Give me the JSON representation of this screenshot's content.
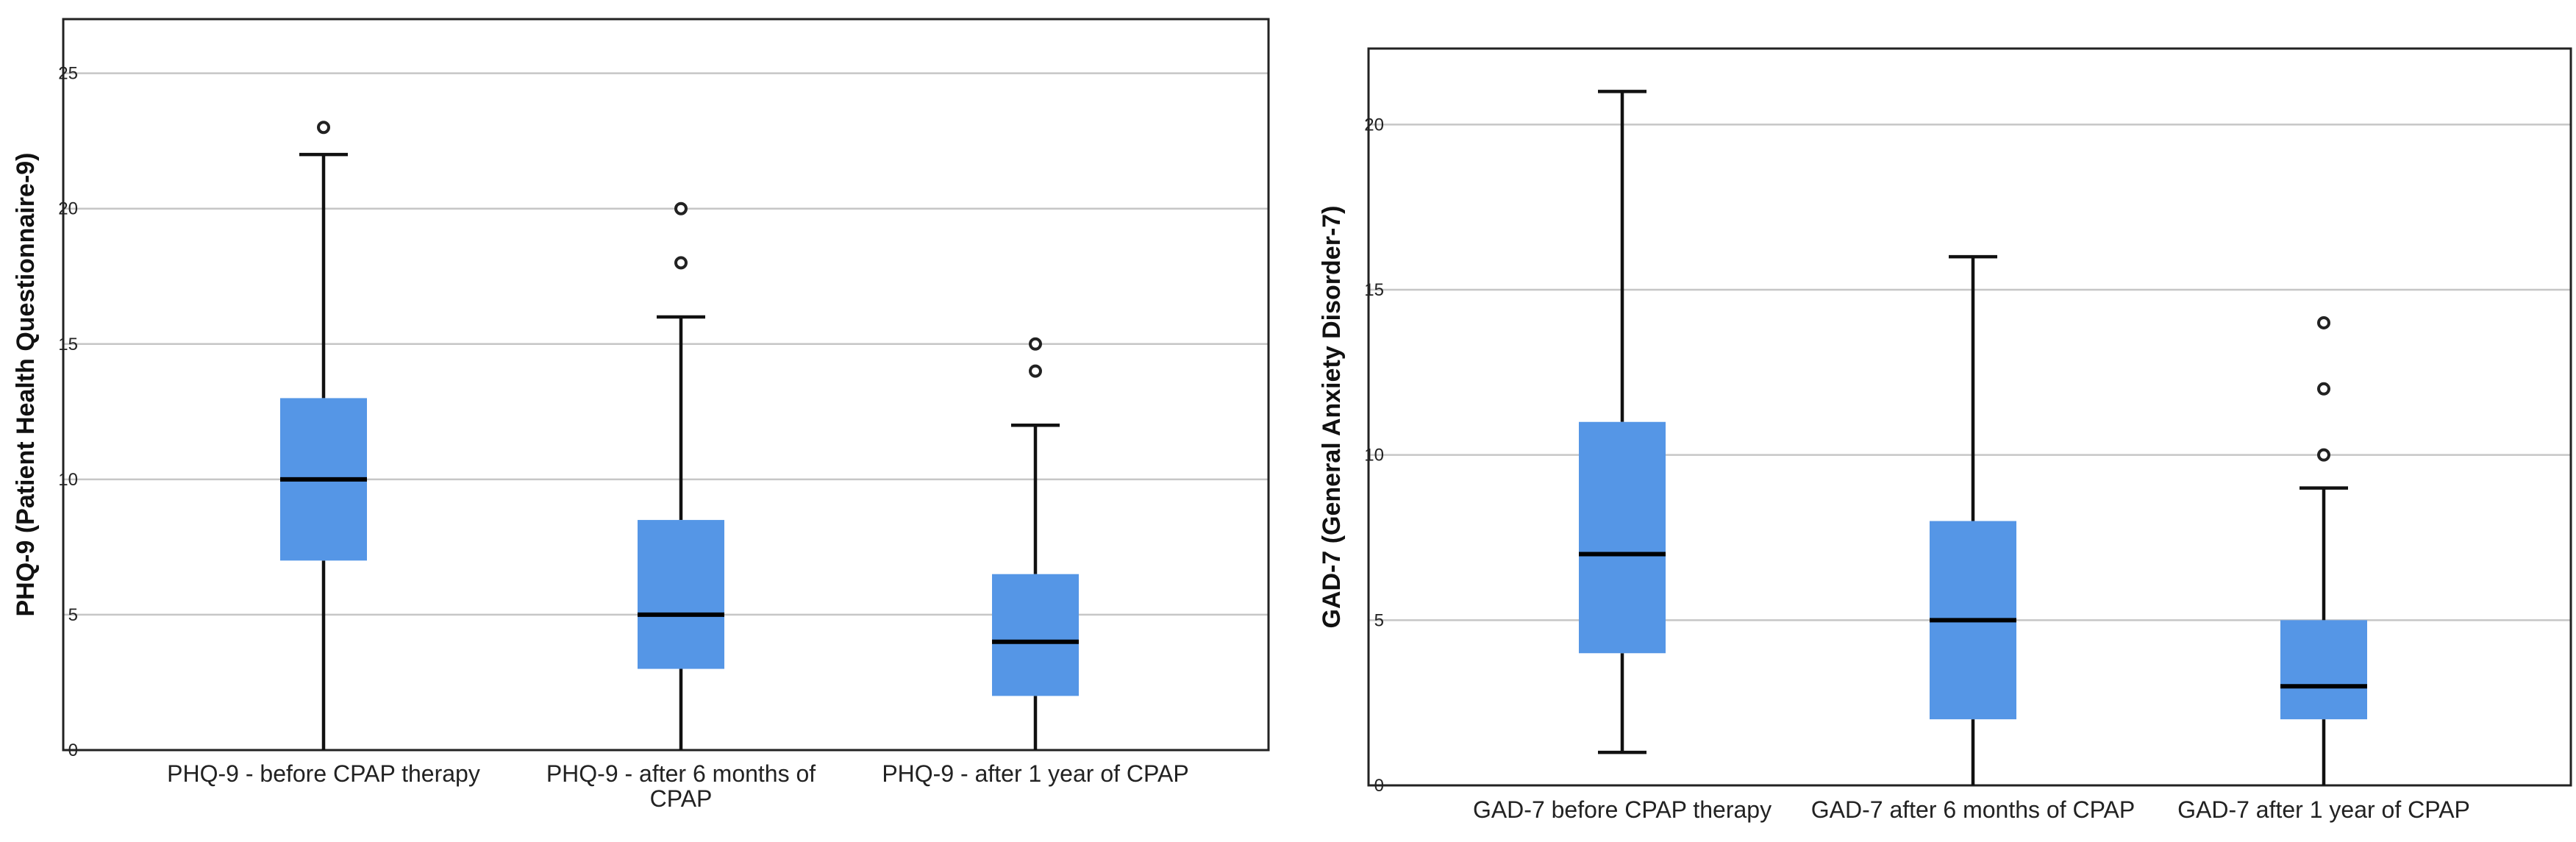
{
  "chart_data": [
    {
      "type": "boxplot",
      "title": "",
      "xlabel": "",
      "ylabel": "PHQ-9 (Patient Health Questionnaire-9)",
      "ylim": [
        0,
        27
      ],
      "yticks": [
        0,
        5,
        10,
        15,
        20,
        25
      ],
      "grid": true,
      "box_color": "#5596e6",
      "categories": [
        {
          "label_lines": [
            "PHQ-9 - before CPAP therapy"
          ],
          "min": 0,
          "q1": 7,
          "median": 10,
          "q3": 13,
          "max": 22,
          "outliers": [
            23
          ]
        },
        {
          "label_lines": [
            "PHQ-9 - after 6 months of",
            "CPAP"
          ],
          "min": 0,
          "q1": 3,
          "median": 5,
          "q3": 8.5,
          "max": 16,
          "outliers": [
            18,
            20
          ]
        },
        {
          "label_lines": [
            "PHQ-9 - after 1 year of CPAP"
          ],
          "min": 0,
          "q1": 2,
          "median": 4,
          "q3": 6.5,
          "max": 12,
          "outliers": [
            14,
            15
          ]
        }
      ]
    },
    {
      "type": "boxplot",
      "title": "",
      "xlabel": "",
      "ylabel": "GAD-7 (General Anxiety Disorder-7)",
      "ylim": [
        0,
        22.3
      ],
      "yticks": [
        0,
        5,
        10,
        15,
        20
      ],
      "grid": true,
      "box_color": "#5596e6",
      "categories": [
        {
          "label_lines": [
            "GAD-7 before CPAP therapy"
          ],
          "min": 1,
          "q1": 4,
          "median": 7,
          "q3": 11,
          "max": 21,
          "outliers": []
        },
        {
          "label_lines": [
            "GAD-7 after 6 months of CPAP"
          ],
          "min": 0,
          "q1": 2,
          "median": 5,
          "q3": 8,
          "max": 16,
          "outliers": []
        },
        {
          "label_lines": [
            "GAD-7 after 1 year of CPAP"
          ],
          "min": 0,
          "q1": 2,
          "median": 3,
          "q3": 5,
          "max": 9,
          "outliers": [
            10,
            12,
            14
          ]
        }
      ]
    }
  ]
}
